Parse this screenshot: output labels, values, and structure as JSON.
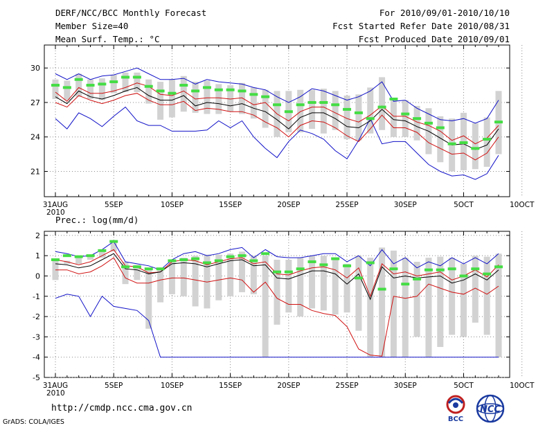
{
  "header": {
    "title": "DERF/NCC/BCC Monthly Forecast",
    "member_size": "Member Size=40",
    "variable": "Mean Surf. Temp.: °C",
    "period": "For 2010/09/01-2010/10/10",
    "refer_date": "Fcst Started Refer Date 2010/08/31",
    "produced_date": "Fcst Produced Date 2010/09/01"
  },
  "footer": {
    "url": "http://cmdp.ncc.cma.gov.cn",
    "credit": "GrADS: COLA/IGES",
    "logo_bcc": "BCC",
    "logo_ncc": "NCC"
  },
  "colors": {
    "max_min": "#1010c8",
    "spread": "#d01010",
    "mean": "#000000",
    "box": "#d2d2d2",
    "median": "#44dd44",
    "grid": "#888888"
  },
  "chart_data": [
    {
      "type": "line",
      "title": "Mean Surf. Temp.: °C",
      "year_label": "2010",
      "x_tick_labels": [
        "31AUG",
        "5SEP",
        "10SEP",
        "15SEP",
        "20SEP",
        "25SEP",
        "30SEP",
        "5OCT",
        "10OCT"
      ],
      "ylim": [
        18.8,
        32.0
      ],
      "yticks": [
        21,
        24,
        27,
        30
      ],
      "series": [
        {
          "name": "max",
          "values": [
            29.5,
            29.0,
            29.5,
            29.0,
            29.3,
            29.4,
            29.7,
            30.0,
            29.5,
            29.0,
            29.0,
            29.1,
            28.6,
            29.0,
            28.8,
            28.7,
            28.6,
            28.3,
            28.1,
            27.5,
            27.0,
            27.5,
            28.2,
            28.0,
            27.6,
            27.2,
            27.5,
            28.0,
            28.8,
            27.1,
            27.2,
            26.5,
            26.0,
            25.5,
            25.4,
            25.6,
            25.2,
            25.6,
            27.2
          ]
        },
        {
          "name": "upper",
          "values": [
            27.9,
            27.1,
            28.3,
            27.8,
            27.8,
            28.0,
            28.3,
            28.7,
            28.4,
            27.7,
            27.6,
            28.0,
            27.3,
            27.4,
            27.4,
            27.3,
            27.4,
            26.8,
            27.0,
            26.0,
            25.4,
            26.2,
            26.6,
            26.6,
            26.1,
            25.6,
            25.3,
            25.9,
            26.7,
            25.8,
            25.8,
            25.3,
            25.0,
            24.5,
            23.7,
            24.1,
            23.4,
            23.9,
            25.0
          ]
        },
        {
          "name": "mean",
          "values": [
            27.5,
            26.9,
            28.0,
            27.5,
            27.3,
            27.6,
            28.0,
            28.3,
            27.6,
            27.2,
            27.2,
            27.6,
            26.7,
            27.0,
            26.9,
            26.7,
            26.9,
            26.5,
            26.2,
            25.5,
            24.7,
            25.7,
            26.1,
            26.1,
            25.6,
            24.9,
            24.8,
            25.4,
            26.4,
            25.5,
            25.4,
            24.9,
            24.5,
            23.9,
            23.3,
            23.4,
            22.9,
            23.3,
            24.7
          ]
        },
        {
          "name": "lower",
          "values": [
            27.0,
            26.6,
            27.6,
            27.2,
            26.9,
            27.2,
            27.6,
            27.8,
            27.2,
            26.8,
            26.8,
            27.1,
            26.3,
            26.5,
            26.4,
            26.2,
            26.2,
            25.9,
            25.3,
            24.8,
            24.0,
            25.0,
            25.4,
            25.3,
            24.8,
            24.1,
            23.6,
            24.7,
            25.9,
            24.8,
            24.8,
            24.4,
            23.5,
            23.0,
            22.5,
            22.6,
            22.0,
            22.6,
            24.0
          ]
        },
        {
          "name": "min",
          "values": [
            25.6,
            24.7,
            26.1,
            25.6,
            24.9,
            25.8,
            26.6,
            25.4,
            25.0,
            25.0,
            24.5,
            24.5,
            24.5,
            24.6,
            25.4,
            24.8,
            25.4,
            24.0,
            23.0,
            22.2,
            23.6,
            24.6,
            24.3,
            23.8,
            22.8,
            22.1,
            23.7,
            25.6,
            23.4,
            23.6,
            23.6,
            22.6,
            21.6,
            21.0,
            20.6,
            20.7,
            20.3,
            20.8,
            22.4
          ]
        },
        {
          "name": "median",
          "values": [
            28.5,
            28.3,
            29.0,
            28.5,
            28.6,
            28.8,
            29.2,
            29.2,
            28.4,
            28.0,
            27.8,
            28.5,
            28.0,
            28.3,
            28.1,
            28.1,
            28.0,
            27.7,
            27.5,
            26.8,
            26.2,
            26.8,
            27.0,
            27.0,
            26.8,
            26.4,
            26.1,
            25.6,
            26.6,
            27.3,
            26.0,
            25.6,
            25.2,
            24.8,
            23.4,
            23.5,
            23.0,
            23.8,
            25.3
          ]
        },
        {
          "name": "box_low",
          "values": [
            27.3,
            27.2,
            27.5,
            27.3,
            27.2,
            27.8,
            27.9,
            27.9,
            26.9,
            25.5,
            25.7,
            26.2,
            26.1,
            26.0,
            26.0,
            26.2,
            26.0,
            25.6,
            24.8,
            24.0,
            24.4,
            24.4,
            24.7,
            24.3,
            24.6,
            23.8,
            23.7,
            24.3,
            24.6,
            24.0,
            24.0,
            23.7,
            22.5,
            21.8,
            21.0,
            21.1,
            21.2,
            21.4,
            22.5
          ]
        },
        {
          "name": "box_high",
          "values": [
            29.0,
            28.9,
            29.5,
            29.0,
            29.1,
            29.4,
            29.6,
            29.6,
            29.0,
            28.8,
            29.0,
            29.3,
            28.8,
            28.9,
            28.6,
            28.5,
            28.7,
            28.3,
            28.1,
            28.0,
            28.0,
            28.1,
            28.1,
            28.2,
            28.0,
            27.6,
            27.7,
            28.3,
            29.2,
            27.4,
            27.2,
            26.7,
            26.5,
            25.8,
            25.6,
            26.1,
            25.2,
            25.7,
            28.0
          ]
        }
      ]
    },
    {
      "type": "line",
      "title": "Prec.: log(mm/d)",
      "year_label": "2010",
      "x_tick_labels": [
        "31AUG",
        "5SEP",
        "10SEP",
        "15SEP",
        "20SEP",
        "25SEP",
        "30SEP",
        "5OCT",
        "10OCT"
      ],
      "ylim": [
        -5,
        2.2
      ],
      "yticks": [
        -5,
        -4,
        -3,
        -2,
        -1,
        0,
        1,
        2
      ],
      "series": [
        {
          "name": "max",
          "values": [
            1.2,
            1.1,
            0.95,
            1.0,
            1.3,
            1.7,
            0.7,
            0.6,
            0.5,
            0.3,
            0.8,
            1.1,
            1.2,
            1.0,
            1.1,
            1.3,
            1.4,
            0.9,
            1.3,
            0.95,
            0.9,
            0.9,
            1.0,
            1.1,
            1.1,
            0.7,
            1.0,
            0.5,
            1.3,
            0.6,
            0.9,
            0.4,
            0.7,
            0.5,
            0.9,
            0.6,
            0.9,
            0.6,
            1.1
          ]
        },
        {
          "name": "upper",
          "values": [
            0.8,
            0.7,
            0.55,
            0.7,
            1.0,
            1.3,
            0.5,
            0.45,
            0.15,
            0.2,
            0.7,
            0.8,
            0.75,
            0.55,
            0.7,
            0.85,
            0.9,
            0.6,
            0.7,
            0.1,
            0.05,
            0.25,
            0.4,
            0.45,
            0.3,
            -0.1,
            0.4,
            -1.0,
            0.6,
            0.1,
            0.2,
            0.0,
            0.1,
            0.2,
            -0.2,
            0.0,
            0.3,
            -0.05,
            0.55
          ]
        },
        {
          "name": "mean",
          "values": [
            0.6,
            0.55,
            0.4,
            0.5,
            0.8,
            1.1,
            0.35,
            0.3,
            0.1,
            0.2,
            0.6,
            0.65,
            0.6,
            0.45,
            0.6,
            0.75,
            0.8,
            0.5,
            0.55,
            -0.1,
            -0.15,
            0.05,
            0.25,
            0.25,
            0.1,
            -0.4,
            0.1,
            -1.15,
            0.45,
            -0.1,
            0.0,
            -0.1,
            -0.05,
            0.0,
            -0.35,
            -0.2,
            0.1,
            -0.2,
            0.3
          ]
        },
        {
          "name": "lower",
          "values": [
            0.3,
            0.3,
            0.1,
            0.2,
            0.5,
            0.9,
            -0.1,
            -0.35,
            -0.35,
            -0.2,
            -0.1,
            -0.1,
            -0.2,
            -0.3,
            -0.2,
            -0.1,
            -0.2,
            -0.8,
            -0.3,
            -1.1,
            -1.4,
            -1.4,
            -1.7,
            -1.85,
            -1.95,
            -2.5,
            -3.6,
            -3.9,
            -3.95,
            -1.0,
            -1.1,
            -1.0,
            -0.4,
            -0.6,
            -0.8,
            -0.9,
            -0.6,
            -0.9,
            -0.5
          ]
        },
        {
          "name": "min",
          "values": [
            -1.1,
            -0.9,
            -1.0,
            -2.0,
            -1.0,
            -1.5,
            -1.6,
            -1.7,
            -2.2,
            -4.0,
            -4.0,
            -4.0,
            -4.0,
            -4.0,
            -4.0,
            -4.0,
            -4.0,
            -4.0,
            -4.0,
            -4.0,
            -4.0,
            -4.0,
            -4.0,
            -4.0,
            -4.0,
            -4.0,
            -4.0,
            -4.0,
            -4.0,
            -4.0,
            -4.0,
            -4.0,
            -4.0,
            -4.0,
            -4.0,
            -4.0,
            -4.0,
            -4.0,
            -4.0
          ]
        },
        {
          "name": "median",
          "values": [
            0.8,
            1.0,
            0.95,
            1.0,
            1.25,
            1.7,
            0.45,
            0.45,
            0.35,
            0.35,
            0.75,
            0.8,
            0.85,
            0.65,
            0.75,
            0.95,
            1.0,
            0.75,
            1.1,
            0.2,
            0.2,
            0.35,
            0.7,
            0.55,
            0.85,
            0.5,
            -0.1,
            0.65,
            -0.65,
            0.35,
            -0.4,
            -0.15,
            0.3,
            0.3,
            0.35,
            0.0,
            0.35,
            0.1,
            0.45
          ]
        },
        {
          "name": "box_low",
          "values": [
            -0.2,
            0.6,
            0.6,
            0.8,
            0.9,
            1.2,
            -0.4,
            -0.2,
            -2.6,
            -1.3,
            -0.9,
            -1.0,
            -1.5,
            -1.6,
            -1.2,
            -1.0,
            -0.8,
            -0.9,
            -4.0,
            -2.4,
            -1.8,
            -2.0,
            -1.6,
            -1.7,
            -1.9,
            -1.8,
            -2.7,
            -4.0,
            -4.0,
            -4.0,
            -4.0,
            -3.0,
            -4.0,
            -3.5,
            -2.9,
            -3.0,
            -2.3,
            -2.9,
            -4.0
          ]
        },
        {
          "name": "box_high",
          "values": [
            0.85,
            0.75,
            0.9,
            0.95,
            1.3,
            1.65,
            0.7,
            0.55,
            0.3,
            0.35,
            0.8,
            0.9,
            1.0,
            1.05,
            1.05,
            1.1,
            1.2,
            1.0,
            1.0,
            0.8,
            0.8,
            0.9,
            1.0,
            1.0,
            0.85,
            0.6,
            1.0,
            0.9,
            1.4,
            1.25,
            0.9,
            0.7,
            0.9,
            0.95,
            0.9,
            0.6,
            1.0,
            0.95,
            1.1
          ]
        }
      ]
    }
  ]
}
